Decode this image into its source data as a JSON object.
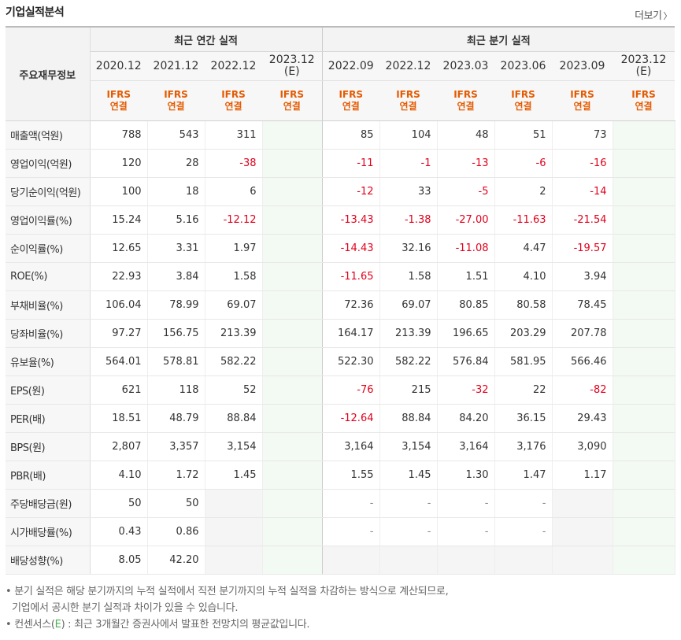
{
  "title": "기업실적분석",
  "more_label": "더보기",
  "header": {
    "corner_label": "주요재무정보",
    "group_annual": "최근 연간 실적",
    "group_quarter": "최근 분기 실적",
    "annual_periods": [
      "2020.12",
      "2021.12",
      "2022.12",
      "2023.12"
    ],
    "annual_estimate_mark": "(E)",
    "quarter_periods": [
      "2022.09",
      "2022.12",
      "2023.03",
      "2023.06",
      "2023.09",
      "2023.12"
    ],
    "quarter_estimate_mark": "(E)",
    "basis_line1": "IFRS",
    "basis_line2": "연결"
  },
  "rows": [
    {
      "label": "매출액(억원)",
      "values": [
        "788",
        "543",
        "311",
        "",
        "85",
        "104",
        "48",
        "51",
        "73",
        ""
      ]
    },
    {
      "label": "영업이익(억원)",
      "values": [
        "120",
        "28",
        "-38",
        "",
        "-11",
        "-1",
        "-13",
        "-6",
        "-16",
        ""
      ]
    },
    {
      "label": "당기순이익(억원)",
      "values": [
        "100",
        "18",
        "6",
        "",
        "-12",
        "33",
        "-5",
        "2",
        "-14",
        ""
      ]
    },
    {
      "label": "영업이익률(%)",
      "values": [
        "15.24",
        "5.16",
        "-12.12",
        "",
        "-13.43",
        "-1.38",
        "-27.00",
        "-11.63",
        "-21.54",
        ""
      ]
    },
    {
      "label": "순이익률(%)",
      "values": [
        "12.65",
        "3.31",
        "1.97",
        "",
        "-14.43",
        "32.16",
        "-11.08",
        "4.47",
        "-19.57",
        ""
      ]
    },
    {
      "label": "ROE(%)",
      "values": [
        "22.93",
        "3.84",
        "1.58",
        "",
        "-11.65",
        "1.58",
        "1.51",
        "4.10",
        "3.94",
        ""
      ]
    },
    {
      "label": "부채비율(%)",
      "values": [
        "106.04",
        "78.99",
        "69.07",
        "",
        "72.36",
        "69.07",
        "80.85",
        "80.58",
        "78.45",
        ""
      ]
    },
    {
      "label": "당좌비율(%)",
      "values": [
        "97.27",
        "156.75",
        "213.39",
        "",
        "164.17",
        "213.39",
        "196.65",
        "203.29",
        "207.78",
        ""
      ]
    },
    {
      "label": "유보율(%)",
      "values": [
        "564.01",
        "578.81",
        "582.22",
        "",
        "522.30",
        "582.22",
        "576.84",
        "581.95",
        "566.46",
        ""
      ]
    },
    {
      "label": "EPS(원)",
      "values": [
        "621",
        "118",
        "52",
        "",
        "-76",
        "215",
        "-32",
        "22",
        "-82",
        ""
      ]
    },
    {
      "label": "PER(배)",
      "values": [
        "18.51",
        "48.79",
        "88.84",
        "",
        "-12.64",
        "88.84",
        "84.20",
        "36.15",
        "29.43",
        ""
      ]
    },
    {
      "label": "BPS(원)",
      "values": [
        "2,807",
        "3,357",
        "3,154",
        "",
        "3,164",
        "3,154",
        "3,164",
        "3,176",
        "3,090",
        ""
      ]
    },
    {
      "label": "PBR(배)",
      "values": [
        "4.10",
        "1.72",
        "1.45",
        "",
        "1.55",
        "1.45",
        "1.30",
        "1.47",
        "1.17",
        ""
      ]
    },
    {
      "label": "주당배당금(원)",
      "values": [
        "50",
        "50",
        "",
        "",
        "-",
        "-",
        "-",
        "-",
        "",
        ""
      ]
    },
    {
      "label": "시가배당률(%)",
      "values": [
        "0.43",
        "0.86",
        "",
        "",
        "-",
        "-",
        "-",
        "-",
        "",
        ""
      ]
    },
    {
      "label": "배당성향(%)",
      "values": [
        "8.05",
        "42.20",
        "",
        "",
        "",
        "",
        "",
        "",
        "",
        ""
      ]
    }
  ],
  "notes": {
    "line1": "분기 실적은 해당 분기까지의 누적 실적에서 직전 분기까지의 누적 실적을 차감하는 방식으로 계산되므로,",
    "line2": "기업에서 공시한 분기 실적과 차이가 있을 수 있습니다.",
    "line3_prefix": "컨센서스(",
    "line3_mark": "E",
    "line3_suffix": ") : 최근 3개월간 증권사에서 발표한 전망치의 평균값입니다.",
    "bullet": "•"
  },
  "colors": {
    "negative": "#e3001b",
    "basis": "#e55a00",
    "estimate": "#4caf50"
  }
}
